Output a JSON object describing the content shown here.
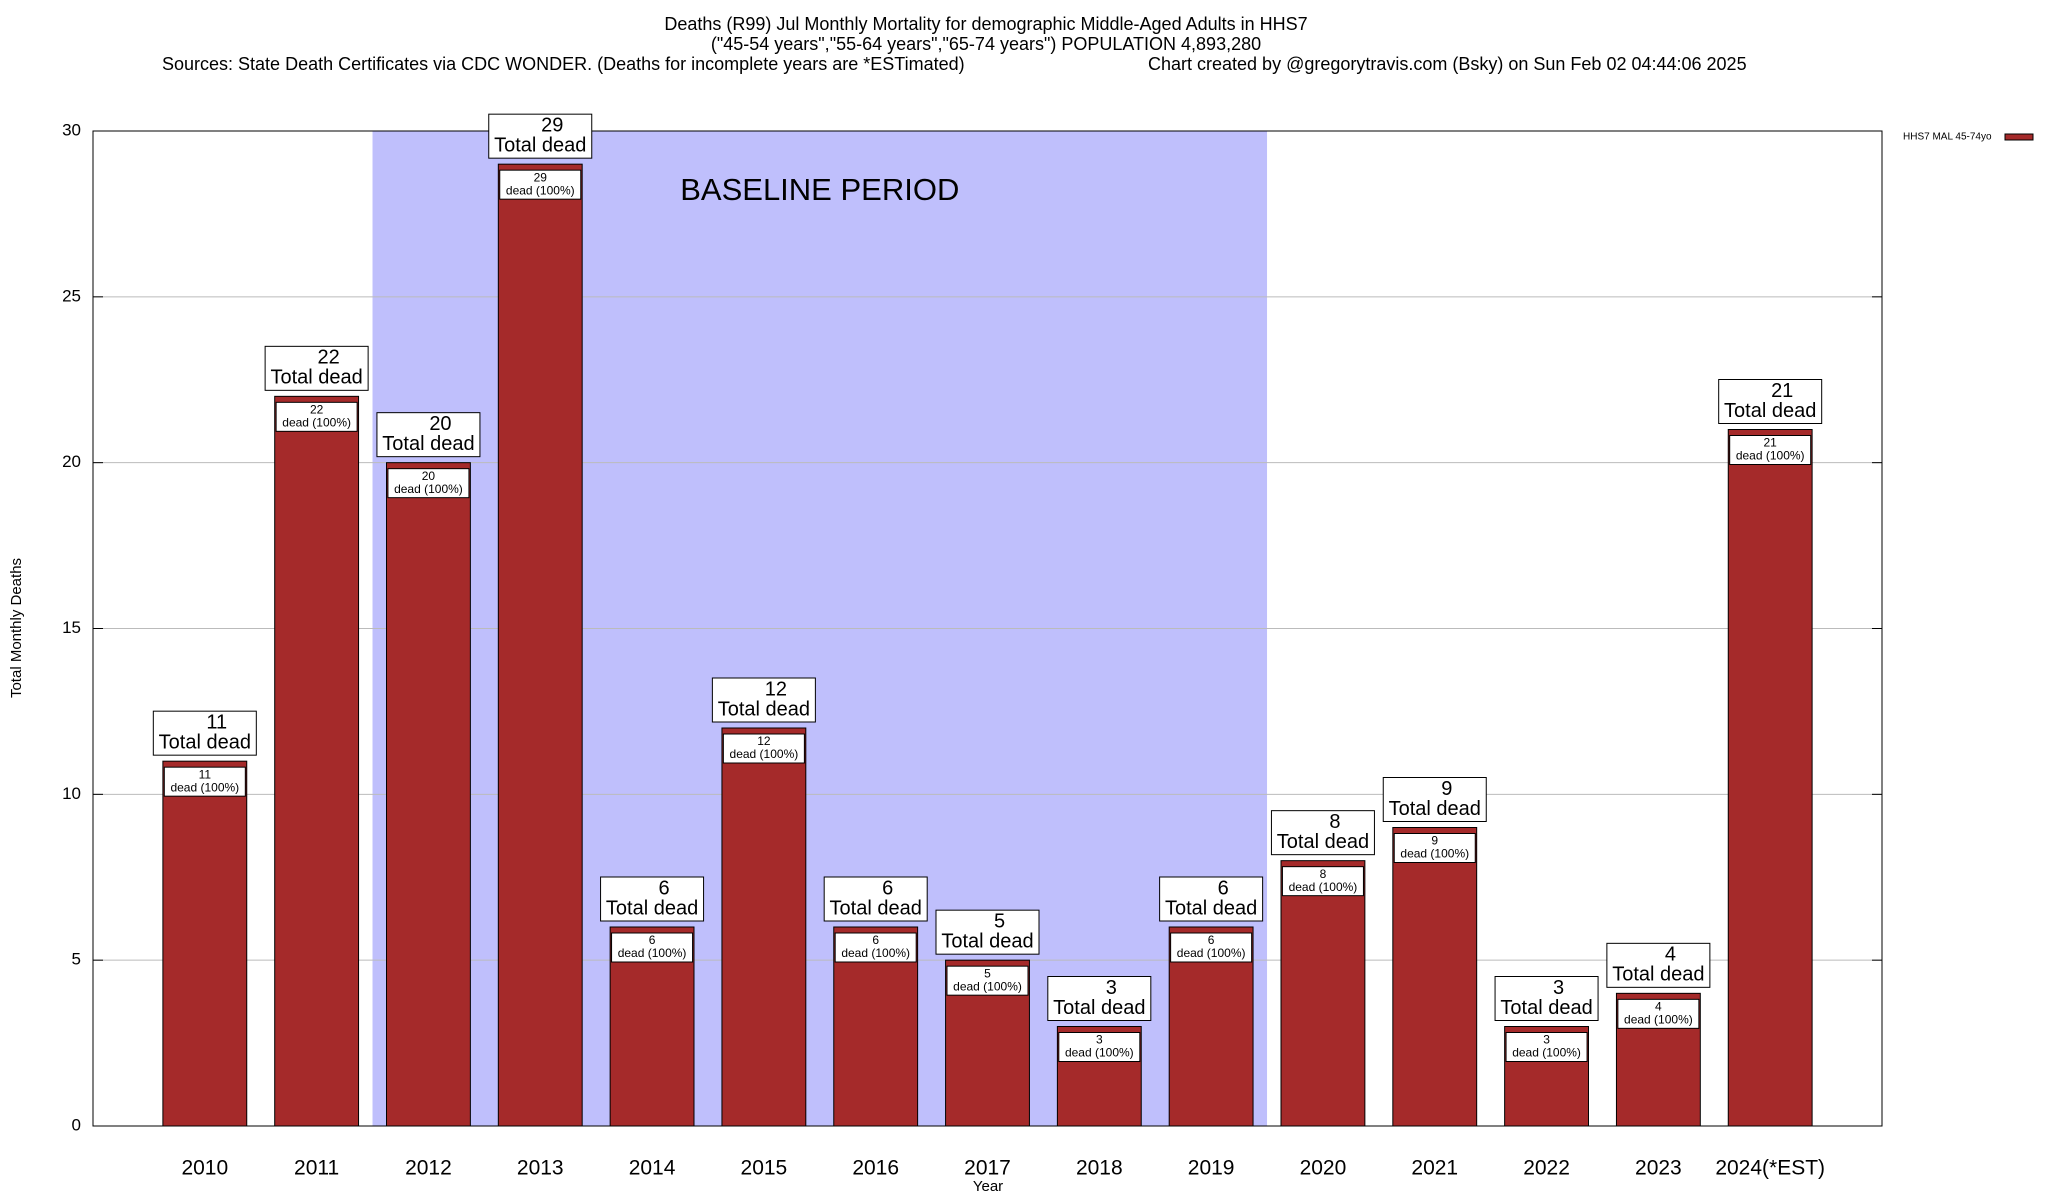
{
  "chart_data": {
    "type": "bar",
    "title": "Deaths (R99) Jul Monthly Mortality for demographic Middle-Aged Adults in HHS7",
    "subtitle": "(\"45-54 years\",\"55-64 years\",\"65-74 years\") POPULATION 4,893,280",
    "sources": "Sources: State Death Certificates via CDC WONDER. (Deaths for incomplete years are *ESTimated)",
    "credit": "Chart created by @gregorytravis.com (Bsky) on Sun Feb 02 04:44:06 2025",
    "x_label": "Year",
    "y_label": "Total Monthly Deaths",
    "categories": [
      "2010",
      "2011",
      "2012",
      "2013",
      "2014",
      "2015",
      "2016",
      "2017",
      "2018",
      "2019",
      "2020",
      "2021",
      "2022",
      "2023",
      "2024(*EST)"
    ],
    "series": [
      {
        "name": "HHS7 MAL 45-74yo",
        "color": "#a52a2a",
        "values": [
          11,
          22,
          20,
          29,
          6,
          12,
          6,
          5,
          3,
          6,
          8,
          9,
          3,
          4,
          21
        ]
      }
    ],
    "top_label_text": "Total dead",
    "inner_label_text": "dead (100%)",
    "shaded_region": {
      "label": "BASELINE PERIOD",
      "from": "2012",
      "to": "2019",
      "color": "#bfbffc"
    },
    "ylim": [
      0,
      30
    ],
    "yticks": [
      0,
      5,
      10,
      15,
      20,
      25,
      30
    ],
    "grid": true,
    "legend": "top-right"
  }
}
